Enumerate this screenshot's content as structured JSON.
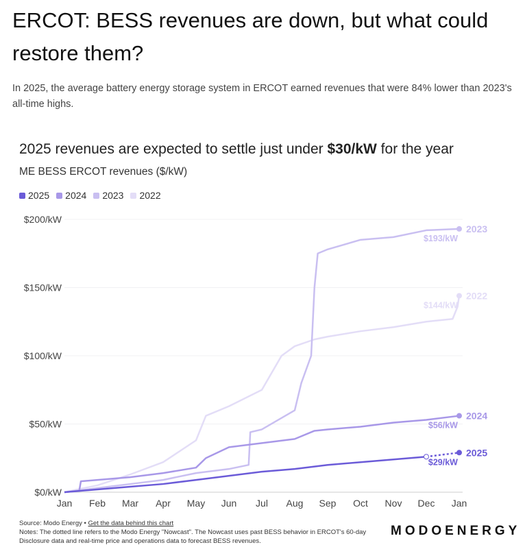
{
  "title": "ERCOT: BESS revenues are down, but what could restore them?",
  "subtitle": "In 2025, the average battery energy storage system in ERCOT earned revenues that were 84% lower than 2023's all-time highs.",
  "chart_title_pre": "2025 revenues are expected to settle just under ",
  "chart_title_bold": "$30/kW",
  "chart_title_post": " for the year",
  "footer": {
    "source": "Source: Modo Energy • ",
    "link": "Get the data behind this chart",
    "notes": "Notes: The dotted line refers to the Modo Energy \"Nowcast\". The Nowcast uses past BESS behavior in ERCOT's 60-day Disclosure data and real-time price and operations data to forecast BESS revenues.",
    "logo": "MODOENERGY"
  },
  "chart_data": {
    "type": "line",
    "ylabel": "ME BESS ERCOT revenues ($/kW)",
    "ylim": [
      0,
      200
    ],
    "yticks": [
      "$0/kW",
      "$50/kW",
      "$100/kW",
      "$150/kW",
      "$200/kW"
    ],
    "xticks": [
      "Jan",
      "Feb",
      "Mar",
      "Apr",
      "May",
      "Jun",
      "Jul",
      "Aug",
      "Sep",
      "Oct",
      "Nov",
      "Dec",
      "Jan"
    ],
    "legend": [
      "2025",
      "2024",
      "2023",
      "2022"
    ],
    "series": [
      {
        "name": "2022",
        "color": "#e3ddf7",
        "end_label": "$144/kW",
        "x": [
          0,
          1,
          2,
          3,
          4,
          4.3,
          5,
          6,
          6.6,
          7,
          7.6,
          8,
          9,
          10,
          11,
          11.8,
          11.95,
          12
        ],
        "y": [
          0,
          5,
          13,
          22,
          38,
          56,
          63,
          75,
          100,
          107,
          112,
          114,
          118,
          121,
          125,
          127,
          136,
          144
        ]
      },
      {
        "name": "2023",
        "color": "#c9bff1",
        "end_label": "$193/kW",
        "x": [
          0,
          1,
          2,
          3,
          4,
          5,
          5.6,
          5.65,
          6,
          7,
          7.2,
          7.5,
          7.6,
          7.7,
          7.8,
          8,
          9,
          10,
          11,
          12
        ],
        "y": [
          0,
          3,
          6,
          9,
          14,
          17,
          20,
          44,
          46,
          60,
          80,
          100,
          150,
          175,
          176,
          178,
          185,
          187,
          192,
          193
        ]
      },
      {
        "name": "2024",
        "color": "#a898e8",
        "end_label": "$56/kW",
        "x": [
          0,
          0.45,
          0.5,
          1,
          2,
          3,
          4,
          4.3,
          5,
          6,
          7,
          7.6,
          8,
          9,
          10,
          11,
          12
        ],
        "y": [
          0,
          1,
          8,
          9,
          11,
          14,
          18,
          25,
          33,
          36,
          39,
          45,
          46,
          48,
          51,
          53,
          56
        ]
      },
      {
        "name": "2025",
        "color": "#6b5bd8",
        "end_label": "$29/kW",
        "x": [
          0,
          1,
          2,
          3,
          4,
          5,
          6,
          7,
          8,
          9,
          10,
          11,
          11
        ],
        "y": [
          0,
          2,
          4,
          6,
          9,
          12,
          15,
          17,
          20,
          22,
          24,
          26,
          26
        ],
        "nowcast_x": [
          11,
          12
        ],
        "nowcast_y": [
          26,
          29
        ]
      }
    ]
  }
}
